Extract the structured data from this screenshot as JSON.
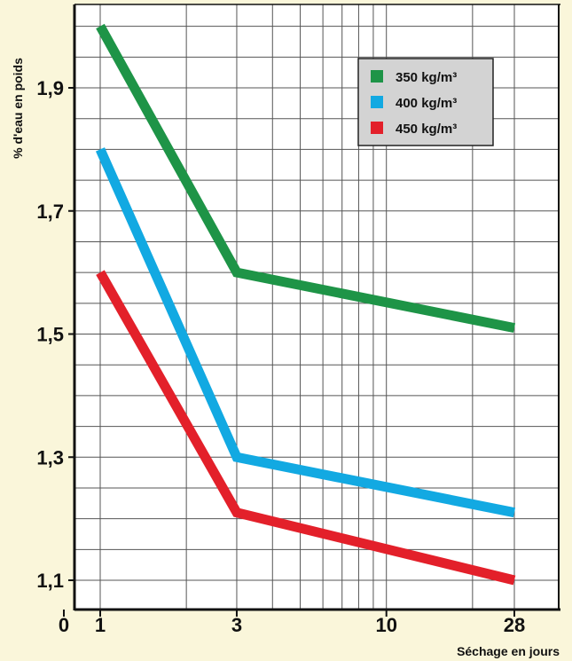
{
  "chart_data": {
    "type": "line",
    "x_scale": "log",
    "x_tick_labels": [
      "0",
      "1",
      "3",
      "10",
      "28"
    ],
    "x": [
      1,
      3,
      28
    ],
    "y_tick_labels": [
      "1,9",
      "1,7",
      "1,5",
      "1,3",
      "1,1"
    ],
    "y_ticks": [
      1.9,
      1.7,
      1.5,
      1.3,
      1.1
    ],
    "ylim": [
      1.05,
      2.05
    ],
    "xlabel": "Séchage en jours",
    "ylabel": "% d'eau en poids",
    "grid": true,
    "legend_position": "top-right",
    "series": [
      {
        "name": "350 kg/m³",
        "color": "#1e9447",
        "values": [
          2.0,
          1.6,
          1.51
        ]
      },
      {
        "name": "400 kg/m³",
        "color": "#12a9e2",
        "values": [
          1.8,
          1.3,
          1.21
        ]
      },
      {
        "name": "450 kg/m³",
        "color": "#e3202a",
        "values": [
          1.6,
          1.21,
          1.1
        ]
      }
    ]
  }
}
